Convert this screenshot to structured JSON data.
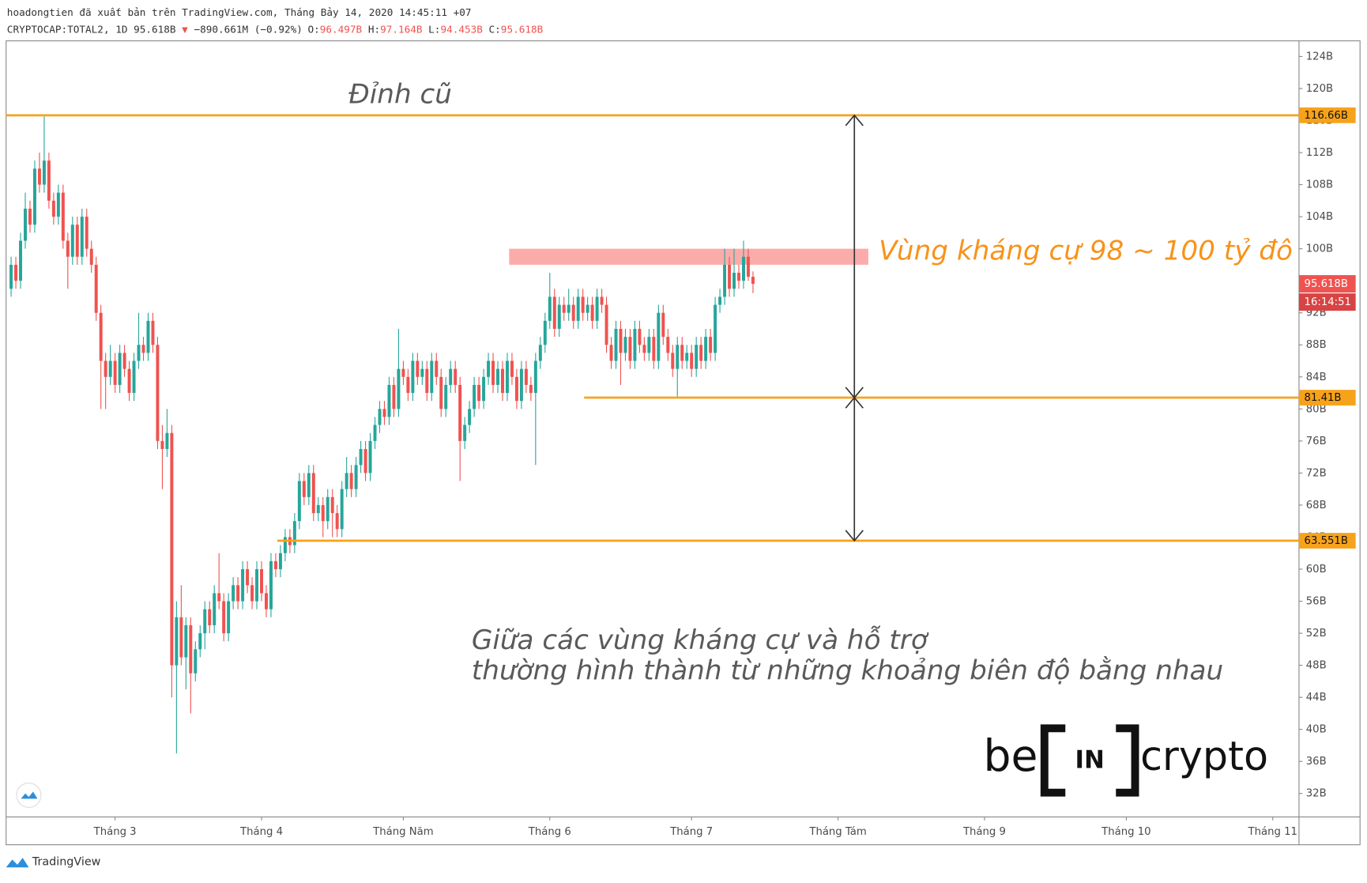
{
  "chart_data": {
    "type": "candlestick",
    "header": {
      "line1": "hoadongtien đã xuất bản trên TradingView.com, Tháng Bảy 14, 2020 14:45:11 +07",
      "symbol": "CRYPTOCAP:TOTAL2, 1D 95.618B",
      "change": "−890.661M (−0.92%)",
      "ohlc": [
        {
          "label": "O:",
          "value": "96.497B"
        },
        {
          "label": "H:",
          "value": "97.164B"
        },
        {
          "label": "L:",
          "value": "94.453B"
        },
        {
          "label": "C:",
          "value": "95.618B"
        }
      ]
    },
    "up_color": "#26a69a",
    "down_color": "#ef5350",
    "candles": [
      [
        95,
        99,
        94,
        98
      ],
      [
        98,
        99,
        95,
        96
      ],
      [
        96,
        102,
        95,
        101
      ],
      [
        101,
        107,
        100,
        105
      ],
      [
        105,
        106,
        102,
        103
      ],
      [
        103,
        111,
        102,
        110
      ],
      [
        110,
        112,
        107,
        108
      ],
      [
        108,
        116.5,
        107,
        111
      ],
      [
        111,
        112,
        105,
        106
      ],
      [
        106,
        107,
        103,
        104
      ],
      [
        104,
        108,
        103,
        107
      ],
      [
        107,
        108,
        100,
        101
      ],
      [
        101,
        102,
        95,
        99
      ],
      [
        99,
        104,
        98,
        103
      ],
      [
        103,
        104,
        98,
        99
      ],
      [
        99,
        105,
        98,
        104
      ],
      [
        104,
        105,
        99,
        100
      ],
      [
        100,
        101,
        97,
        98
      ],
      [
        98,
        99,
        91,
        92
      ],
      [
        92,
        93,
        80,
        86
      ],
      [
        86,
        87,
        80,
        84
      ],
      [
        84,
        88,
        83,
        86
      ],
      [
        86,
        87,
        82,
        83
      ],
      [
        83,
        88,
        82,
        87
      ],
      [
        87,
        88,
        84,
        85
      ],
      [
        85,
        86,
        81,
        82
      ],
      [
        82,
        87,
        81,
        86
      ],
      [
        86,
        92,
        85,
        88
      ],
      [
        88,
        89,
        86,
        87
      ],
      [
        87,
        92,
        86,
        91
      ],
      [
        91,
        92,
        87,
        88
      ],
      [
        88,
        89,
        75,
        76
      ],
      [
        76,
        78,
        70,
        75
      ],
      [
        75,
        80,
        74,
        77
      ],
      [
        77,
        78,
        44,
        48
      ],
      [
        48,
        56,
        37,
        54
      ],
      [
        54,
        58,
        48,
        49
      ],
      [
        49,
        54,
        45,
        53
      ],
      [
        53,
        54,
        42,
        47
      ],
      [
        47,
        51,
        46,
        50
      ],
      [
        50,
        53,
        49,
        52
      ],
      [
        52,
        56,
        50,
        55
      ],
      [
        55,
        56,
        52,
        53
      ],
      [
        53,
        58,
        52,
        57
      ],
      [
        57,
        62,
        55,
        56
      ],
      [
        56,
        57,
        51,
        52
      ],
      [
        52,
        57,
        51,
        56
      ],
      [
        56,
        59,
        55,
        58
      ],
      [
        58,
        59,
        55,
        56
      ],
      [
        56,
        61,
        55,
        60
      ],
      [
        60,
        61,
        57,
        58
      ],
      [
        58,
        59,
        55,
        56
      ],
      [
        56,
        61,
        55,
        60
      ],
      [
        60,
        61,
        56,
        57
      ],
      [
        57,
        58,
        54,
        55
      ],
      [
        55,
        62,
        54,
        61
      ],
      [
        61,
        62,
        59,
        60
      ],
      [
        60,
        63,
        59,
        62
      ],
      [
        62,
        65,
        61,
        64
      ],
      [
        64,
        65,
        62,
        63
      ],
      [
        63,
        67,
        62,
        66
      ],
      [
        66,
        72,
        65,
        71
      ],
      [
        71,
        72,
        68,
        69
      ],
      [
        69,
        73,
        68,
        72
      ],
      [
        72,
        73,
        66,
        67
      ],
      [
        67,
        69,
        66,
        68
      ],
      [
        68,
        69,
        64,
        66
      ],
      [
        66,
        70,
        65,
        69
      ],
      [
        69,
        70,
        64,
        67
      ],
      [
        67,
        68,
        64,
        65
      ],
      [
        65,
        71,
        64,
        70
      ],
      [
        70,
        74,
        69,
        72
      ],
      [
        72,
        73,
        69,
        70
      ],
      [
        70,
        74,
        69,
        73
      ],
      [
        73,
        76,
        72,
        75
      ],
      [
        75,
        76,
        71,
        72
      ],
      [
        72,
        77,
        71,
        76
      ],
      [
        76,
        79,
        75,
        78
      ],
      [
        78,
        81,
        77,
        80
      ],
      [
        80,
        81,
        78,
        79
      ],
      [
        79,
        84,
        78,
        83
      ],
      [
        83,
        84,
        79,
        80
      ],
      [
        80,
        90,
        79,
        85
      ],
      [
        85,
        86,
        83,
        84
      ],
      [
        84,
        85,
        81,
        82
      ],
      [
        82,
        87,
        81,
        86
      ],
      [
        86,
        87,
        83,
        84
      ],
      [
        84,
        86,
        83,
        85
      ],
      [
        85,
        86,
        81,
        82
      ],
      [
        82,
        87,
        81,
        86
      ],
      [
        86,
        87,
        83,
        84
      ],
      [
        84,
        85,
        79,
        80
      ],
      [
        80,
        84,
        79,
        83
      ],
      [
        83,
        86,
        82,
        85
      ],
      [
        85,
        86,
        82,
        83
      ],
      [
        83,
        84,
        71,
        76
      ],
      [
        76,
        79,
        75,
        78
      ],
      [
        78,
        81,
        77,
        80
      ],
      [
        80,
        84,
        79,
        83
      ],
      [
        83,
        84,
        80,
        81
      ],
      [
        81,
        85,
        80,
        84
      ],
      [
        84,
        87,
        83,
        86
      ],
      [
        86,
        87,
        82,
        83
      ],
      [
        83,
        86,
        82,
        85
      ],
      [
        85,
        86,
        81,
        82
      ],
      [
        82,
        87,
        81,
        86
      ],
      [
        86,
        87,
        83,
        84
      ],
      [
        84,
        85,
        80,
        81
      ],
      [
        81,
        86,
        80,
        85
      ],
      [
        85,
        86,
        82,
        83
      ],
      [
        83,
        84,
        81,
        82
      ],
      [
        82,
        87,
        73,
        86
      ],
      [
        86,
        89,
        85,
        88
      ],
      [
        88,
        92,
        87,
        91
      ],
      [
        91,
        97,
        90,
        94
      ],
      [
        94,
        95,
        89,
        90
      ],
      [
        90,
        94,
        89,
        93
      ],
      [
        93,
        94,
        91,
        92
      ],
      [
        92,
        95,
        91,
        93
      ],
      [
        93,
        94,
        90,
        91
      ],
      [
        91,
        95,
        90,
        94
      ],
      [
        94,
        95,
        91,
        92
      ],
      [
        92,
        94,
        91,
        93
      ],
      [
        93,
        94,
        90,
        91
      ],
      [
        91,
        95,
        90,
        94
      ],
      [
        94,
        95,
        92,
        93
      ],
      [
        93,
        94,
        87,
        88
      ],
      [
        88,
        89,
        85,
        86
      ],
      [
        86,
        91,
        85,
        90
      ],
      [
        90,
        91,
        83,
        87
      ],
      [
        87,
        90,
        86,
        89
      ],
      [
        89,
        90,
        85,
        86
      ],
      [
        86,
        91,
        85,
        90
      ],
      [
        90,
        91,
        87,
        88
      ],
      [
        88,
        89,
        86,
        87
      ],
      [
        87,
        90,
        86,
        89
      ],
      [
        89,
        90,
        85,
        86
      ],
      [
        86,
        93,
        85,
        92
      ],
      [
        92,
        93,
        88,
        89
      ],
      [
        89,
        90,
        86,
        87
      ],
      [
        87,
        88,
        84,
        85
      ],
      [
        85,
        89,
        81.4,
        88
      ],
      [
        88,
        89,
        85,
        86
      ],
      [
        86,
        88,
        85,
        87
      ],
      [
        87,
        88,
        84,
        85
      ],
      [
        85,
        89,
        84,
        88
      ],
      [
        88,
        89,
        85,
        86
      ],
      [
        86,
        90,
        85,
        89
      ],
      [
        89,
        90,
        86,
        87
      ],
      [
        87,
        94,
        86,
        93
      ],
      [
        93,
        95,
        92,
        94
      ],
      [
        94,
        100,
        93,
        98
      ],
      [
        98,
        99,
        94,
        95
      ],
      [
        95,
        100,
        94,
        97
      ],
      [
        97,
        98,
        95,
        96
      ],
      [
        96,
        101,
        95,
        99
      ],
      [
        99,
        100,
        96,
        96.497
      ],
      [
        96.497,
        97.164,
        94.453,
        95.618
      ]
    ],
    "xlim": [
      -1.06,
      272.55
    ],
    "xticks": [
      {
        "value": 22,
        "label": "Tháng 3"
      },
      {
        "value": 53,
        "label": "Tháng 4"
      },
      {
        "value": 83,
        "label": "Tháng Năm"
      },
      {
        "value": 114,
        "label": "Tháng 6"
      },
      {
        "value": 144,
        "label": "Tháng 7"
      },
      {
        "value": 175,
        "label": "Tháng Tám"
      },
      {
        "value": 206,
        "label": "Tháng 9"
      },
      {
        "value": 236,
        "label": "Tháng 10"
      },
      {
        "value": 267,
        "label": "Tháng 11"
      }
    ],
    "ylim": [
      29.07,
      125.95
    ],
    "yticks": [
      {
        "value": 32,
        "label": "32B"
      },
      {
        "value": 36,
        "label": "36B"
      },
      {
        "value": 40,
        "label": "40B"
      },
      {
        "value": 44,
        "label": "44B"
      },
      {
        "value": 48,
        "label": "48B"
      },
      {
        "value": 52,
        "label": "52B"
      },
      {
        "value": 56,
        "label": "56B"
      },
      {
        "value": 60,
        "label": "60B"
      },
      {
        "value": 64,
        "label": "64B"
      },
      {
        "value": 68,
        "label": "68B"
      },
      {
        "value": 72,
        "label": "72B"
      },
      {
        "value": 76,
        "label": "76B"
      },
      {
        "value": 80,
        "label": "80B"
      },
      {
        "value": 84,
        "label": "84B"
      },
      {
        "value": 88,
        "label": "88B"
      },
      {
        "value": 92,
        "label": "92B"
      },
      {
        "value": 96,
        "label": "96B"
      },
      {
        "value": 100,
        "label": "100B"
      },
      {
        "value": 104,
        "label": "104B"
      },
      {
        "value": 108,
        "label": "108B"
      },
      {
        "value": 112,
        "label": "112B"
      },
      {
        "value": 116,
        "label": "116B"
      },
      {
        "value": 120,
        "label": "120B"
      },
      {
        "value": 124,
        "label": "124B"
      }
    ],
    "levels": [
      {
        "value": 116.66,
        "label": "116.66B"
      },
      {
        "value": 81.41,
        "label": "81.41B"
      },
      {
        "value": 63.551,
        "label": "63.551B"
      }
    ],
    "level_color": "#f7a21b",
    "last_price": {
      "value": 95.618,
      "label": "95.618B",
      "countdown": "16:14:51"
    },
    "zone": [
      98,
      100
    ],
    "zone_color": "#fb9c9c",
    "annotations": {
      "old_high": "Đỉnh cũ",
      "resistance": "Vùng kháng cự 98 ~ 100 tỷ đô",
      "note": [
        "Giữa các vùng kháng cự và hỗ trợ",
        "thường hình thành từ những khoảng biên độ bằng nhau"
      ]
    },
    "watermark": [
      "be",
      "IN",
      "crypto"
    ],
    "footer": "TradingView"
  }
}
